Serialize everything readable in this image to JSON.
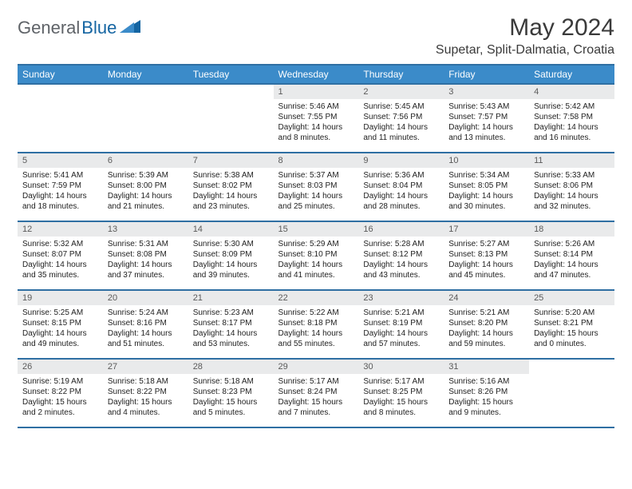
{
  "brand": {
    "text1": "General",
    "text2": "Blue"
  },
  "header": {
    "month": "May 2024",
    "location": "Supetar, Split-Dalmatia, Croatia"
  },
  "colors": {
    "header_bg": "#3b8bc9",
    "rule": "#2f6fa3",
    "daynum_bg": "#e9eaeb",
    "logo_gray": "#5f6368",
    "logo_blue": "#1565a2"
  },
  "dayNames": [
    "Sunday",
    "Monday",
    "Tuesday",
    "Wednesday",
    "Thursday",
    "Friday",
    "Saturday"
  ],
  "weeks": [
    [
      {
        "n": "",
        "sr": "",
        "ss": "",
        "dl": ""
      },
      {
        "n": "",
        "sr": "",
        "ss": "",
        "dl": ""
      },
      {
        "n": "",
        "sr": "",
        "ss": "",
        "dl": ""
      },
      {
        "n": "1",
        "sr": "Sunrise: 5:46 AM",
        "ss": "Sunset: 7:55 PM",
        "dl": "Daylight: 14 hours and 8 minutes."
      },
      {
        "n": "2",
        "sr": "Sunrise: 5:45 AM",
        "ss": "Sunset: 7:56 PM",
        "dl": "Daylight: 14 hours and 11 minutes."
      },
      {
        "n": "3",
        "sr": "Sunrise: 5:43 AM",
        "ss": "Sunset: 7:57 PM",
        "dl": "Daylight: 14 hours and 13 minutes."
      },
      {
        "n": "4",
        "sr": "Sunrise: 5:42 AM",
        "ss": "Sunset: 7:58 PM",
        "dl": "Daylight: 14 hours and 16 minutes."
      }
    ],
    [
      {
        "n": "5",
        "sr": "Sunrise: 5:41 AM",
        "ss": "Sunset: 7:59 PM",
        "dl": "Daylight: 14 hours and 18 minutes."
      },
      {
        "n": "6",
        "sr": "Sunrise: 5:39 AM",
        "ss": "Sunset: 8:00 PM",
        "dl": "Daylight: 14 hours and 21 minutes."
      },
      {
        "n": "7",
        "sr": "Sunrise: 5:38 AM",
        "ss": "Sunset: 8:02 PM",
        "dl": "Daylight: 14 hours and 23 minutes."
      },
      {
        "n": "8",
        "sr": "Sunrise: 5:37 AM",
        "ss": "Sunset: 8:03 PM",
        "dl": "Daylight: 14 hours and 25 minutes."
      },
      {
        "n": "9",
        "sr": "Sunrise: 5:36 AM",
        "ss": "Sunset: 8:04 PM",
        "dl": "Daylight: 14 hours and 28 minutes."
      },
      {
        "n": "10",
        "sr": "Sunrise: 5:34 AM",
        "ss": "Sunset: 8:05 PM",
        "dl": "Daylight: 14 hours and 30 minutes."
      },
      {
        "n": "11",
        "sr": "Sunrise: 5:33 AM",
        "ss": "Sunset: 8:06 PM",
        "dl": "Daylight: 14 hours and 32 minutes."
      }
    ],
    [
      {
        "n": "12",
        "sr": "Sunrise: 5:32 AM",
        "ss": "Sunset: 8:07 PM",
        "dl": "Daylight: 14 hours and 35 minutes."
      },
      {
        "n": "13",
        "sr": "Sunrise: 5:31 AM",
        "ss": "Sunset: 8:08 PM",
        "dl": "Daylight: 14 hours and 37 minutes."
      },
      {
        "n": "14",
        "sr": "Sunrise: 5:30 AM",
        "ss": "Sunset: 8:09 PM",
        "dl": "Daylight: 14 hours and 39 minutes."
      },
      {
        "n": "15",
        "sr": "Sunrise: 5:29 AM",
        "ss": "Sunset: 8:10 PM",
        "dl": "Daylight: 14 hours and 41 minutes."
      },
      {
        "n": "16",
        "sr": "Sunrise: 5:28 AM",
        "ss": "Sunset: 8:12 PM",
        "dl": "Daylight: 14 hours and 43 minutes."
      },
      {
        "n": "17",
        "sr": "Sunrise: 5:27 AM",
        "ss": "Sunset: 8:13 PM",
        "dl": "Daylight: 14 hours and 45 minutes."
      },
      {
        "n": "18",
        "sr": "Sunrise: 5:26 AM",
        "ss": "Sunset: 8:14 PM",
        "dl": "Daylight: 14 hours and 47 minutes."
      }
    ],
    [
      {
        "n": "19",
        "sr": "Sunrise: 5:25 AM",
        "ss": "Sunset: 8:15 PM",
        "dl": "Daylight: 14 hours and 49 minutes."
      },
      {
        "n": "20",
        "sr": "Sunrise: 5:24 AM",
        "ss": "Sunset: 8:16 PM",
        "dl": "Daylight: 14 hours and 51 minutes."
      },
      {
        "n": "21",
        "sr": "Sunrise: 5:23 AM",
        "ss": "Sunset: 8:17 PM",
        "dl": "Daylight: 14 hours and 53 minutes."
      },
      {
        "n": "22",
        "sr": "Sunrise: 5:22 AM",
        "ss": "Sunset: 8:18 PM",
        "dl": "Daylight: 14 hours and 55 minutes."
      },
      {
        "n": "23",
        "sr": "Sunrise: 5:21 AM",
        "ss": "Sunset: 8:19 PM",
        "dl": "Daylight: 14 hours and 57 minutes."
      },
      {
        "n": "24",
        "sr": "Sunrise: 5:21 AM",
        "ss": "Sunset: 8:20 PM",
        "dl": "Daylight: 14 hours and 59 minutes."
      },
      {
        "n": "25",
        "sr": "Sunrise: 5:20 AM",
        "ss": "Sunset: 8:21 PM",
        "dl": "Daylight: 15 hours and 0 minutes."
      }
    ],
    [
      {
        "n": "26",
        "sr": "Sunrise: 5:19 AM",
        "ss": "Sunset: 8:22 PM",
        "dl": "Daylight: 15 hours and 2 minutes."
      },
      {
        "n": "27",
        "sr": "Sunrise: 5:18 AM",
        "ss": "Sunset: 8:22 PM",
        "dl": "Daylight: 15 hours and 4 minutes."
      },
      {
        "n": "28",
        "sr": "Sunrise: 5:18 AM",
        "ss": "Sunset: 8:23 PM",
        "dl": "Daylight: 15 hours and 5 minutes."
      },
      {
        "n": "29",
        "sr": "Sunrise: 5:17 AM",
        "ss": "Sunset: 8:24 PM",
        "dl": "Daylight: 15 hours and 7 minutes."
      },
      {
        "n": "30",
        "sr": "Sunrise: 5:17 AM",
        "ss": "Sunset: 8:25 PM",
        "dl": "Daylight: 15 hours and 8 minutes."
      },
      {
        "n": "31",
        "sr": "Sunrise: 5:16 AM",
        "ss": "Sunset: 8:26 PM",
        "dl": "Daylight: 15 hours and 9 minutes."
      },
      {
        "n": "",
        "sr": "",
        "ss": "",
        "dl": ""
      }
    ]
  ]
}
